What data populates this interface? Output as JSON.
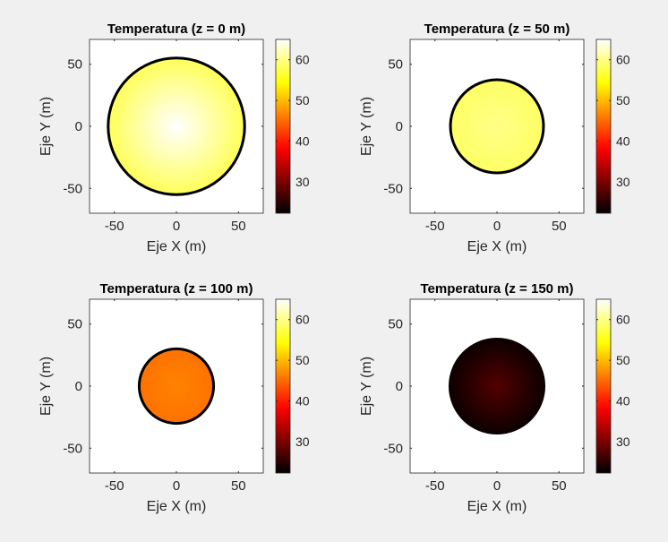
{
  "chart_data": [
    {
      "type": "heatmap",
      "title": "Temperatura (z = 0 m)",
      "xlabel": "Eje X (m)",
      "ylabel": "Eje Y (m)",
      "xlim": [
        -70,
        70
      ],
      "ylim": [
        -70,
        70
      ],
      "xticks": [
        -50,
        0,
        50
      ],
      "yticks": [
        -50,
        0,
        50
      ],
      "circle": {
        "center": [
          0,
          0
        ],
        "radius": 55,
        "t_center": 65,
        "t_edge": 58,
        "outline": true
      },
      "colorbar": {
        "colormap": "hot",
        "clim": [
          22.3,
          65
        ],
        "ticks": [
          30,
          40,
          50,
          60
        ]
      }
    },
    {
      "type": "heatmap",
      "title": "Temperatura (z = 50 m)",
      "xlabel": "Eje X (m)",
      "ylabel": "Eje Y (m)",
      "xlim": [
        -70,
        70
      ],
      "ylim": [
        -70,
        70
      ],
      "xticks": [
        -50,
        0,
        50
      ],
      "yticks": [
        -50,
        0,
        50
      ],
      "circle": {
        "center": [
          0,
          0
        ],
        "radius": 37.5,
        "t_center": 60,
        "t_edge": 58.5,
        "outline": true
      },
      "colorbar": {
        "colormap": "hot",
        "clim": [
          22.3,
          65
        ],
        "ticks": [
          30,
          40,
          50,
          60
        ]
      }
    },
    {
      "type": "heatmap",
      "title": "Temperatura (z = 100 m)",
      "xlabel": "Eje X (m)",
      "ylabel": "Eje Y (m)",
      "xlim": [
        -70,
        70
      ],
      "ylim": [
        -70,
        70
      ],
      "xticks": [
        -50,
        0,
        50
      ],
      "yticks": [
        -50,
        0,
        50
      ],
      "circle": {
        "center": [
          0,
          0
        ],
        "radius": 30,
        "t_center": 46.5,
        "t_edge": 45.5,
        "outline": true
      },
      "colorbar": {
        "colormap": "hot",
        "clim": [
          22.3,
          65
        ],
        "ticks": [
          30,
          40,
          50,
          60
        ]
      }
    },
    {
      "type": "heatmap",
      "title": "Temperatura (z = 150 m)",
      "xlabel": "Eje X (m)",
      "ylabel": "Eje Y (m)",
      "xlim": [
        -70,
        70
      ],
      "ylim": [
        -70,
        70
      ],
      "xticks": [
        -50,
        0,
        50
      ],
      "yticks": [
        -50,
        0,
        50
      ],
      "circle": {
        "center": [
          0,
          0
        ],
        "radius": 39,
        "t_center": 27.5,
        "t_edge": 23,
        "outline": false
      },
      "colorbar": {
        "colormap": "hot",
        "clim": [
          22.3,
          65
        ],
        "ticks": [
          30,
          40,
          50,
          60
        ]
      }
    }
  ]
}
